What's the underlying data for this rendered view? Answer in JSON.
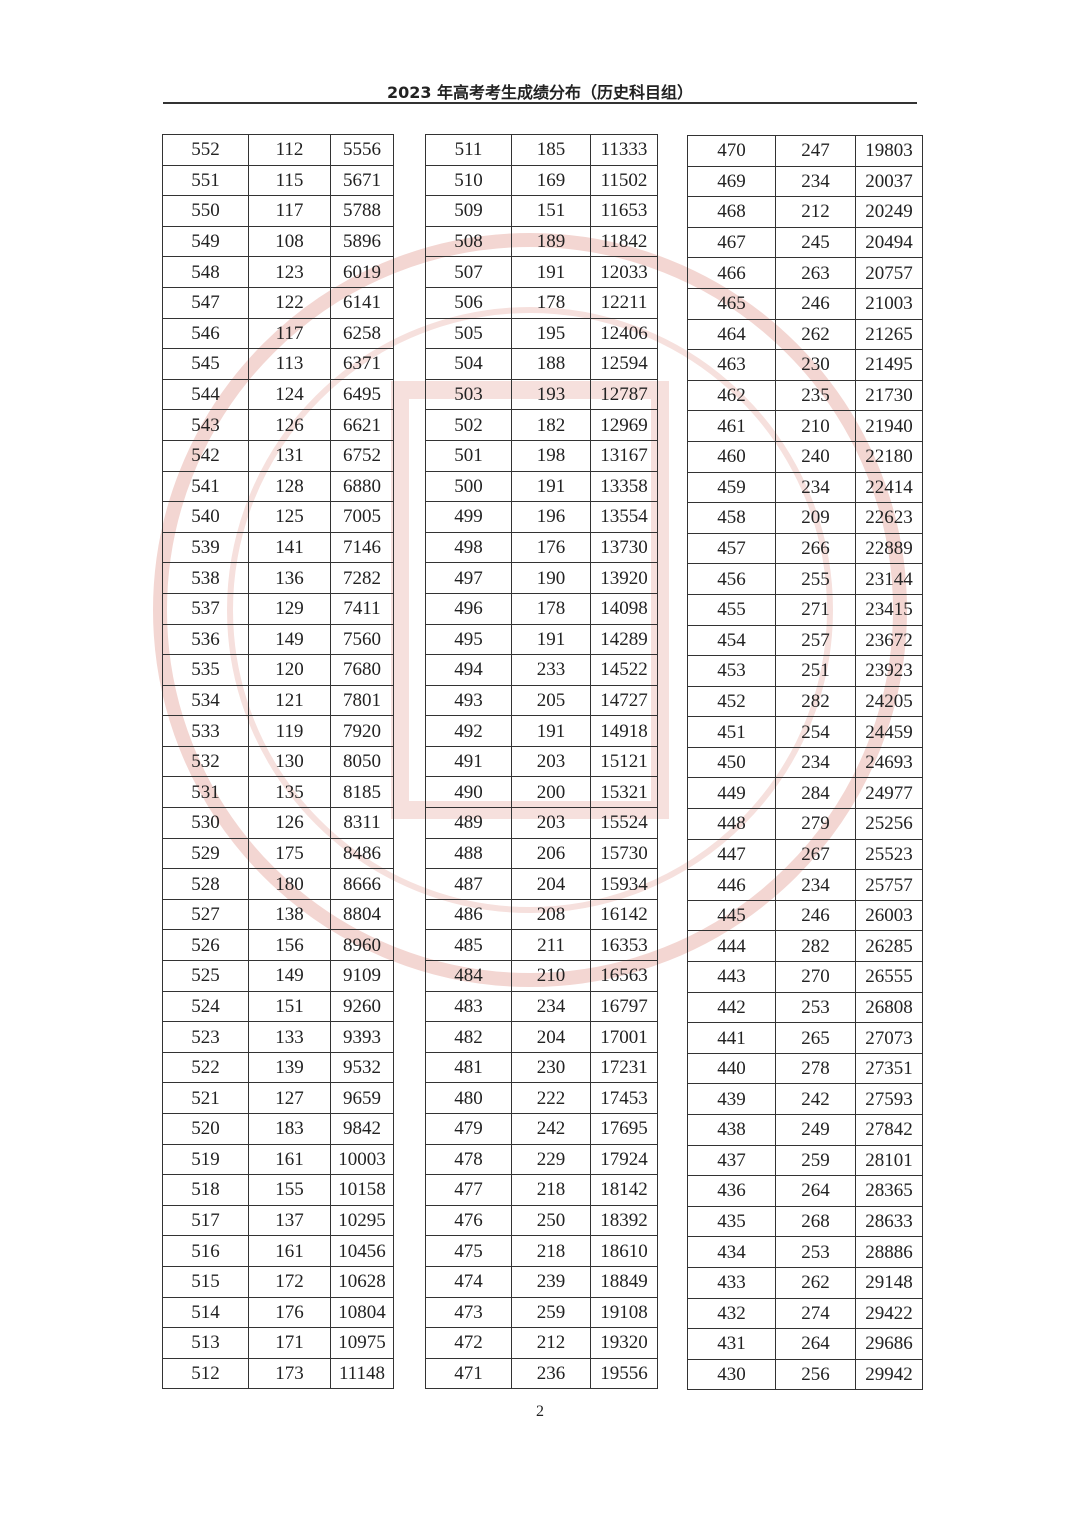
{
  "header": {
    "title": "2023 年高考考生成绩分布（历史科目组）"
  },
  "footer": {
    "page_number": "2"
  },
  "accent_colors": {
    "seal_watermark": "#e8b4ae"
  },
  "tables": [
    {
      "rows": [
        [
          "552",
          "112",
          "5556"
        ],
        [
          "551",
          "115",
          "5671"
        ],
        [
          "550",
          "117",
          "5788"
        ],
        [
          "549",
          "108",
          "5896"
        ],
        [
          "548",
          "123",
          "6019"
        ],
        [
          "547",
          "122",
          "6141"
        ],
        [
          "546",
          "117",
          "6258"
        ],
        [
          "545",
          "113",
          "6371"
        ],
        [
          "544",
          "124",
          "6495"
        ],
        [
          "543",
          "126",
          "6621"
        ],
        [
          "542",
          "131",
          "6752"
        ],
        [
          "541",
          "128",
          "6880"
        ],
        [
          "540",
          "125",
          "7005"
        ],
        [
          "539",
          "141",
          "7146"
        ],
        [
          "538",
          "136",
          "7282"
        ],
        [
          "537",
          "129",
          "7411"
        ],
        [
          "536",
          "149",
          "7560"
        ],
        [
          "535",
          "120",
          "7680"
        ],
        [
          "534",
          "121",
          "7801"
        ],
        [
          "533",
          "119",
          "7920"
        ],
        [
          "532",
          "130",
          "8050"
        ],
        [
          "531",
          "135",
          "8185"
        ],
        [
          "530",
          "126",
          "8311"
        ],
        [
          "529",
          "175",
          "8486"
        ],
        [
          "528",
          "180",
          "8666"
        ],
        [
          "527",
          "138",
          "8804"
        ],
        [
          "526",
          "156",
          "8960"
        ],
        [
          "525",
          "149",
          "9109"
        ],
        [
          "524",
          "151",
          "9260"
        ],
        [
          "523",
          "133",
          "9393"
        ],
        [
          "522",
          "139",
          "9532"
        ],
        [
          "521",
          "127",
          "9659"
        ],
        [
          "520",
          "183",
          "9842"
        ],
        [
          "519",
          "161",
          "10003"
        ],
        [
          "518",
          "155",
          "10158"
        ],
        [
          "517",
          "137",
          "10295"
        ],
        [
          "516",
          "161",
          "10456"
        ],
        [
          "515",
          "172",
          "10628"
        ],
        [
          "514",
          "176",
          "10804"
        ],
        [
          "513",
          "171",
          "10975"
        ],
        [
          "512",
          "173",
          "11148"
        ]
      ]
    },
    {
      "rows": [
        [
          "511",
          "185",
          "11333"
        ],
        [
          "510",
          "169",
          "11502"
        ],
        [
          "509",
          "151",
          "11653"
        ],
        [
          "508",
          "189",
          "11842"
        ],
        [
          "507",
          "191",
          "12033"
        ],
        [
          "506",
          "178",
          "12211"
        ],
        [
          "505",
          "195",
          "12406"
        ],
        [
          "504",
          "188",
          "12594"
        ],
        [
          "503",
          "193",
          "12787"
        ],
        [
          "502",
          "182",
          "12969"
        ],
        [
          "501",
          "198",
          "13167"
        ],
        [
          "500",
          "191",
          "13358"
        ],
        [
          "499",
          "196",
          "13554"
        ],
        [
          "498",
          "176",
          "13730"
        ],
        [
          "497",
          "190",
          "13920"
        ],
        [
          "496",
          "178",
          "14098"
        ],
        [
          "495",
          "191",
          "14289"
        ],
        [
          "494",
          "233",
          "14522"
        ],
        [
          "493",
          "205",
          "14727"
        ],
        [
          "492",
          "191",
          "14918"
        ],
        [
          "491",
          "203",
          "15121"
        ],
        [
          "490",
          "200",
          "15321"
        ],
        [
          "489",
          "203",
          "15524"
        ],
        [
          "488",
          "206",
          "15730"
        ],
        [
          "487",
          "204",
          "15934"
        ],
        [
          "486",
          "208",
          "16142"
        ],
        [
          "485",
          "211",
          "16353"
        ],
        [
          "484",
          "210",
          "16563"
        ],
        [
          "483",
          "234",
          "16797"
        ],
        [
          "482",
          "204",
          "17001"
        ],
        [
          "481",
          "230",
          "17231"
        ],
        [
          "480",
          "222",
          "17453"
        ],
        [
          "479",
          "242",
          "17695"
        ],
        [
          "478",
          "229",
          "17924"
        ],
        [
          "477",
          "218",
          "18142"
        ],
        [
          "476",
          "250",
          "18392"
        ],
        [
          "475",
          "218",
          "18610"
        ],
        [
          "474",
          "239",
          "18849"
        ],
        [
          "473",
          "259",
          "19108"
        ],
        [
          "472",
          "212",
          "19320"
        ],
        [
          "471",
          "236",
          "19556"
        ]
      ]
    },
    {
      "rows": [
        [
          "470",
          "247",
          "19803"
        ],
        [
          "469",
          "234",
          "20037"
        ],
        [
          "468",
          "212",
          "20249"
        ],
        [
          "467",
          "245",
          "20494"
        ],
        [
          "466",
          "263",
          "20757"
        ],
        [
          "465",
          "246",
          "21003"
        ],
        [
          "464",
          "262",
          "21265"
        ],
        [
          "463",
          "230",
          "21495"
        ],
        [
          "462",
          "235",
          "21730"
        ],
        [
          "461",
          "210",
          "21940"
        ],
        [
          "460",
          "240",
          "22180"
        ],
        [
          "459",
          "234",
          "22414"
        ],
        [
          "458",
          "209",
          "22623"
        ],
        [
          "457",
          "266",
          "22889"
        ],
        [
          "456",
          "255",
          "23144"
        ],
        [
          "455",
          "271",
          "23415"
        ],
        [
          "454",
          "257",
          "23672"
        ],
        [
          "453",
          "251",
          "23923"
        ],
        [
          "452",
          "282",
          "24205"
        ],
        [
          "451",
          "254",
          "24459"
        ],
        [
          "450",
          "234",
          "24693"
        ],
        [
          "449",
          "284",
          "24977"
        ],
        [
          "448",
          "279",
          "25256"
        ],
        [
          "447",
          "267",
          "25523"
        ],
        [
          "446",
          "234",
          "25757"
        ],
        [
          "445",
          "246",
          "26003"
        ],
        [
          "444",
          "282",
          "26285"
        ],
        [
          "443",
          "270",
          "26555"
        ],
        [
          "442",
          "253",
          "26808"
        ],
        [
          "441",
          "265",
          "27073"
        ],
        [
          "440",
          "278",
          "27351"
        ],
        [
          "439",
          "242",
          "27593"
        ],
        [
          "438",
          "249",
          "27842"
        ],
        [
          "437",
          "259",
          "28101"
        ],
        [
          "436",
          "264",
          "28365"
        ],
        [
          "435",
          "268",
          "28633"
        ],
        [
          "434",
          "253",
          "28886"
        ],
        [
          "433",
          "262",
          "29148"
        ],
        [
          "432",
          "274",
          "29422"
        ],
        [
          "431",
          "264",
          "29686"
        ],
        [
          "430",
          "256",
          "29942"
        ]
      ]
    }
  ]
}
